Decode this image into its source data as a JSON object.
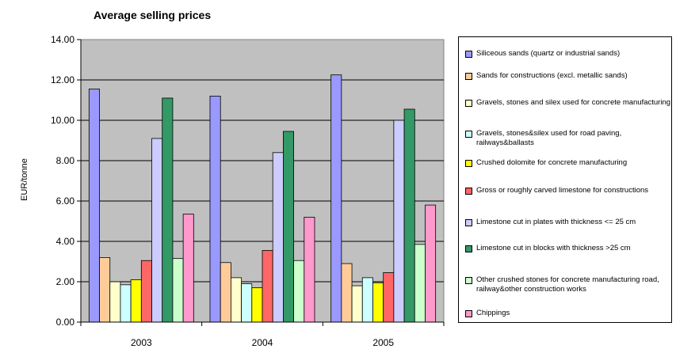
{
  "chart_data": {
    "type": "bar",
    "title": "Average selling prices",
    "xlabel": "",
    "ylabel": "EUR/tonne",
    "ylim": [
      0,
      14
    ],
    "yticks": [
      "0.00",
      "2.00",
      "4.00",
      "6.00",
      "8.00",
      "10.00",
      "12.00",
      "14.00"
    ],
    "categories": [
      "2003",
      "2004",
      "2005"
    ],
    "plot_background": "#c0c0c0",
    "grid": true,
    "legend_position": "right",
    "series": [
      {
        "name": "Siliceous sands (quartz or industrial sands)",
        "color": "#9999ff",
        "values": [
          11.55,
          11.2,
          12.25
        ]
      },
      {
        "name": "Sands for constructions (excl. metallic sands)",
        "color": "#ffcc99",
        "values": [
          3.2,
          2.95,
          2.9
        ]
      },
      {
        "name": "Gravels, stones and silex used for concrete manufacturing",
        "color": "#ffffcc",
        "values": [
          2.0,
          2.2,
          1.8
        ]
      },
      {
        "name": "Gravels, stones&silex used for road paving, railways&ballasts",
        "color": "#ccffff",
        "values": [
          1.85,
          1.9,
          2.2
        ]
      },
      {
        "name": "Crushed dolomite for concrete manufacturing",
        "color": "#ffff00",
        "values": [
          2.1,
          1.7,
          1.95
        ]
      },
      {
        "name": "Gross or roughly carved limestone for constructions",
        "color": "#ff6666",
        "values": [
          3.05,
          3.55,
          2.45
        ]
      },
      {
        "name": "Limestone cut in plates with thickness <= 25 cm",
        "color": "#ccccff",
        "values": [
          9.1,
          8.4,
          10.0
        ]
      },
      {
        "name": "Limestone cut in blocks with thickness >25 cm",
        "color": "#339966",
        "values": [
          11.1,
          9.45,
          10.55
        ]
      },
      {
        "name": "Other crushed stones for concrete manufacturing road, railway&other construction works",
        "color": "#ccffcc",
        "values": [
          3.15,
          3.05,
          3.85
        ]
      },
      {
        "name": "Chippings",
        "color": "#ff99cc",
        "values": [
          5.35,
          5.2,
          5.8
        ]
      }
    ]
  }
}
